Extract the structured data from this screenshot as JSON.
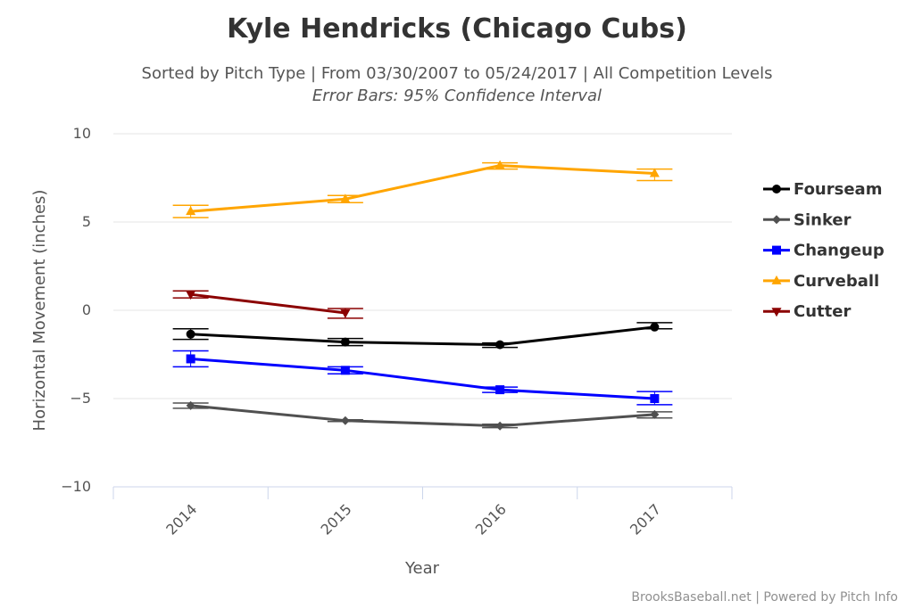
{
  "chart_data": {
    "type": "line",
    "title": "Kyle Hendricks (Chicago Cubs)",
    "subtitle": "Sorted by Pitch Type | From 03/30/2007 to 05/24/2017 | All Competition Levels",
    "subtitle2": "Error Bars: 95% Confidence Interval",
    "xlabel": "Year",
    "ylabel": "Horizontal Movement (inches)",
    "categories": [
      "2014",
      "2015",
      "2016",
      "2017"
    ],
    "ylim": [
      -10,
      10
    ],
    "yticks": [
      10,
      5,
      0,
      -5,
      -10
    ],
    "ytick_labels": [
      "10",
      "5",
      "0",
      "−5",
      "−10"
    ],
    "grid": true,
    "legend_position": "right",
    "credits": "BrooksBaseball.net | Powered by Pitch Info",
    "series": [
      {
        "name": "Fourseam",
        "color": "#000000",
        "marker": "circle",
        "values": [
          -1.35,
          -1.8,
          -1.95,
          -0.95
        ],
        "error_low": [
          -1.65,
          -2.0,
          -2.1,
          -1.05
        ],
        "error_high": [
          -1.05,
          -1.6,
          -1.85,
          -0.7
        ]
      },
      {
        "name": "Sinker",
        "color": "#505050",
        "marker": "diamond",
        "values": [
          -5.4,
          -6.25,
          -6.55,
          -5.9
        ],
        "error_low": [
          -5.55,
          -6.3,
          -6.65,
          -6.1
        ],
        "error_high": [
          -5.25,
          -6.2,
          -6.45,
          -5.75
        ]
      },
      {
        "name": "Changeup",
        "color": "#0000ff",
        "marker": "square",
        "values": [
          -2.75,
          -3.4,
          -4.5,
          -5.0
        ],
        "error_low": [
          -3.2,
          -3.6,
          -4.65,
          -5.35
        ],
        "error_high": [
          -2.3,
          -3.2,
          -4.35,
          -4.6
        ]
      },
      {
        "name": "Curveball",
        "color": "#ffa500",
        "marker": "triangle",
        "values": [
          5.6,
          6.3,
          8.2,
          7.75
        ],
        "error_low": [
          5.25,
          6.1,
          8.0,
          7.35
        ],
        "error_high": [
          5.95,
          6.5,
          8.35,
          8.0
        ]
      },
      {
        "name": "Cutter",
        "color": "#8b0000",
        "marker": "triangle-down",
        "values": [
          0.9,
          -0.15,
          null,
          null
        ],
        "error_low": [
          0.7,
          -0.45,
          null,
          null
        ],
        "error_high": [
          1.1,
          0.1,
          null,
          null
        ]
      }
    ]
  }
}
